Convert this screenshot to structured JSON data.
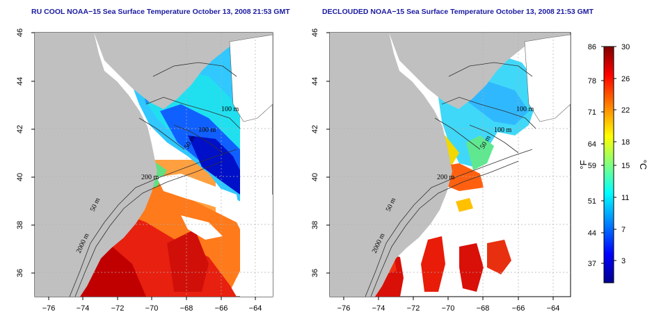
{
  "panels": [
    {
      "id": "left",
      "title": "RU COOL NOAA−15 Sea Surface Temperature October 13, 2008 21:53 GMT"
    },
    {
      "id": "right",
      "title": "DECLOUDED NOAA−15 Sea Surface Temperature October 13, 2008 21:53 GMT"
    }
  ],
  "axes": {
    "x_ticks": [
      "−76",
      "−74",
      "−72",
      "−70",
      "−68",
      "−66",
      "−64"
    ],
    "y_ticks": [
      "46",
      "44",
      "42",
      "40",
      "38",
      "36"
    ],
    "lon_range": [
      -77,
      -63
    ],
    "lat_range": [
      35,
      46
    ]
  },
  "contour_labels": [
    "100 m",
    "100 m",
    "50 m",
    "200 m",
    "50 m",
    "2000 m"
  ],
  "colorbar": {
    "fahrenheit_ticks": [
      "86",
      "78",
      "71",
      "64",
      "59",
      "51",
      "44",
      "37"
    ],
    "celsius_ticks": [
      "30",
      "26",
      "22",
      "18",
      "15",
      "11",
      "7",
      "3"
    ],
    "left_unit": "°F",
    "right_unit": "°C",
    "colors": [
      "#00008f",
      "#0000ff",
      "#0080ff",
      "#00ffff",
      "#80ff80",
      "#ffff00",
      "#ff8000",
      "#ff0000",
      "#800000"
    ]
  },
  "colors": {
    "land": "#c0c0c0",
    "grid": "#b0b0b0",
    "title": "#1a1aa0"
  }
}
